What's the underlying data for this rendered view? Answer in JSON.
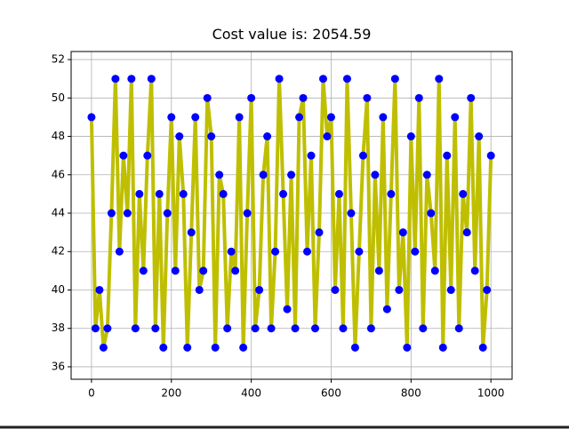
{
  "chart_data": {
    "type": "line",
    "title": "Cost value is: 2054.59",
    "x": [
      0,
      10,
      20,
      30,
      40,
      50,
      60,
      70,
      80,
      90,
      100,
      110,
      120,
      130,
      140,
      150,
      160,
      170,
      180,
      190,
      200,
      210,
      220,
      230,
      240,
      250,
      260,
      270,
      280,
      290,
      300,
      310,
      320,
      330,
      340,
      350,
      360,
      370,
      380,
      390,
      400,
      410,
      420,
      430,
      440,
      450,
      460,
      470,
      480,
      490,
      500,
      510,
      520,
      530,
      540,
      550,
      560,
      570,
      580,
      590,
      600,
      610,
      620,
      630,
      640,
      650,
      660,
      670,
      680,
      690,
      700,
      710,
      720,
      730,
      740,
      750,
      760,
      770,
      780,
      790,
      800,
      810,
      820,
      830,
      840,
      850,
      860,
      870,
      880,
      890,
      900,
      910,
      920,
      930,
      940,
      950,
      960,
      970,
      980,
      990,
      1000
    ],
    "series": [
      {
        "color": "#bfbf00",
        "marker_color": "#0000ff",
        "values": [
          49,
          38,
          40,
          37,
          38,
          44,
          51,
          42,
          47,
          44,
          51,
          38,
          45,
          41,
          47,
          51,
          38,
          45,
          37,
          44,
          49,
          41,
          48,
          45,
          37,
          43,
          49,
          40,
          41,
          50,
          48,
          37,
          46,
          45,
          38,
          42,
          41,
          49,
          37,
          44,
          50,
          38,
          40,
          46,
          48,
          38,
          42,
          51,
          45,
          39,
          46,
          38,
          49,
          50,
          42,
          47,
          38,
          43,
          51,
          48,
          49,
          40,
          45,
          38,
          51,
          44,
          37,
          42,
          47,
          50,
          38,
          46,
          41,
          49,
          39,
          45,
          51,
          40,
          43,
          37,
          48,
          42,
          50,
          38,
          46,
          44,
          41,
          51,
          37,
          47,
          40,
          49,
          38,
          45,
          43,
          50,
          41,
          48,
          37,
          40,
          47
        ]
      }
    ],
    "xlim": [
      -51,
      1053
    ],
    "xticks": [
      0,
      200,
      400,
      600,
      800,
      1000
    ],
    "ylim": [
      35.35,
      52.42
    ],
    "yticks": [
      36,
      38,
      40,
      42,
      44,
      46,
      48,
      50,
      52
    ],
    "grid": true
  }
}
